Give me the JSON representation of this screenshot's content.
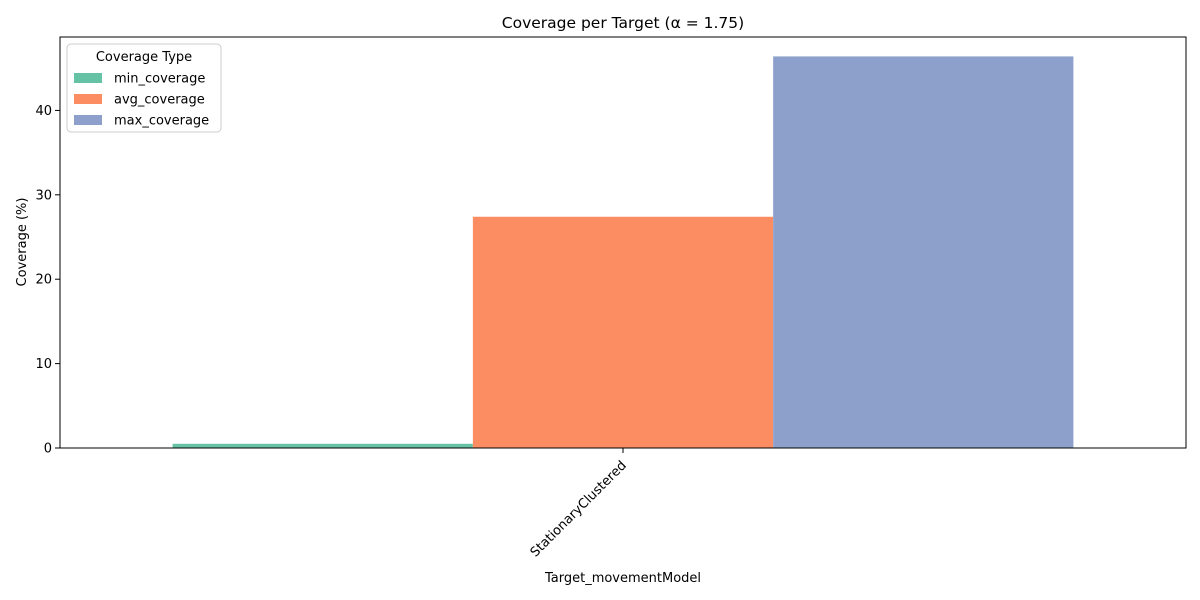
{
  "chart_data": {
    "type": "bar",
    "title": "Coverage per Target (α = 1.75)",
    "xlabel": "Target_movementModel",
    "ylabel": "Coverage (%)",
    "categories": [
      "StationaryClustered"
    ],
    "series": [
      {
        "name": "min_coverage",
        "values": [
          0.5
        ],
        "color": "#66c2a5"
      },
      {
        "name": "avg_coverage",
        "values": [
          27.4
        ],
        "color": "#fc8d62"
      },
      {
        "name": "max_coverage",
        "values": [
          46.4
        ],
        "color": "#8da0cb"
      }
    ],
    "ylim": [
      0,
      48.7
    ],
    "yticks": [
      0,
      10,
      20,
      30,
      40
    ],
    "legend": {
      "title": "Coverage Type",
      "placement": "upper-left"
    },
    "grid": false,
    "xtick_rotation": 45
  }
}
